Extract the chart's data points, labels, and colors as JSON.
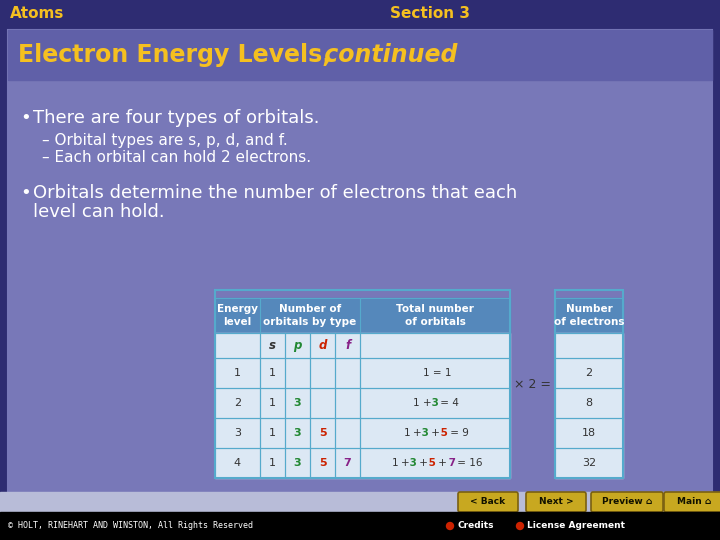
{
  "title_left": "Atoms",
  "title_right": "Section 3",
  "slide_title_normal": "Electron Energy Levels,",
  "slide_title_italic": " continued",
  "bullet1": "There are four types of orbitals.",
  "sub1": "Orbital types are s, p, d, and f.",
  "sub2": "Each orbital can hold 2 electrons.",
  "bullet2_line1": "Orbitals determine the number of electrons that each",
  "bullet2_line2": "level can hold.",
  "bg_dark": "#2e2c72",
  "bg_panel": "#7878b8",
  "bg_title_strip": "#6060a8",
  "text_yellow": "#f5c020",
  "text_white": "#ffffff",
  "text_dark": "#111133",
  "text_bullet": "#ffffff",
  "table_bg": "#dce8f4",
  "table_header_bg": "#5588bb",
  "table_border": "#55aacc",
  "footer_nav_bg": "#b8bcd8",
  "footer_bg": "#000000",
  "footer_text": "#ffffff",
  "btn_color": "#c8a820",
  "btn_border": "#7a6010",
  "copyright": "© HOLT, RINEHART AND WINSTON, All Rights Reserved",
  "credits_text": "Credits",
  "license_text": "License Agreement",
  "col_s": "#333333",
  "col_p": "#228833",
  "col_d": "#cc2200",
  "col_f": "#882288",
  "x2_text": "× 2 ="
}
